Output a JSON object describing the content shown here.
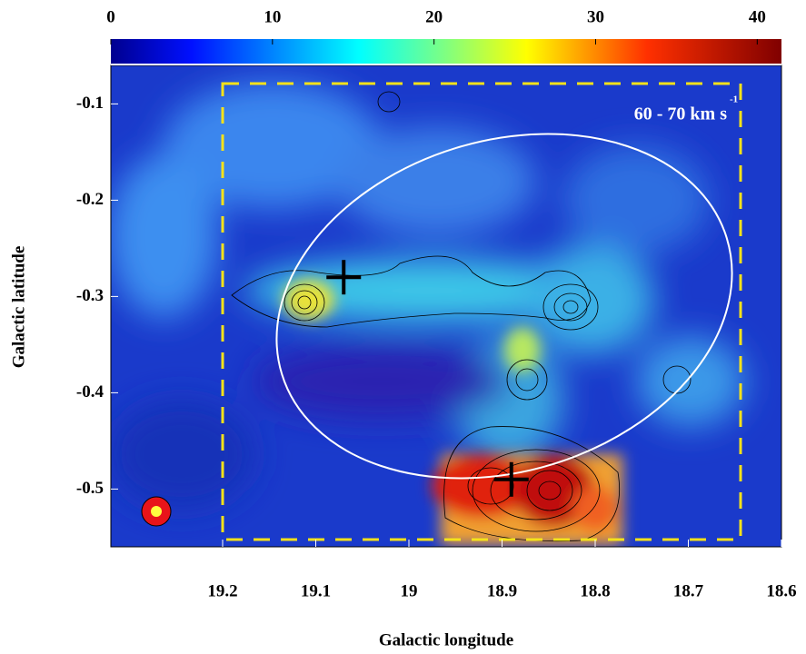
{
  "chart_data": {
    "type": "map",
    "xlabel": "Galactic longitude",
    "ylabel": "Galactic latitude",
    "annotation": "60 - 70 km s",
    "annotation_superscript": "-1",
    "xlim": [
      19.32,
      18.6
    ],
    "xticks": [
      19.2,
      19.1,
      19.0,
      18.9,
      18.8,
      18.7,
      18.6
    ],
    "ylim": [
      -0.56,
      -0.06
    ],
    "yticks": [
      -0.1,
      -0.2,
      -0.3,
      -0.4,
      -0.5
    ],
    "colorbar_lim": [
      0,
      41.5
    ],
    "colorbar_ticks": [
      0,
      10,
      20,
      30,
      40
    ],
    "markers": {
      "x": [
        19.07,
        18.89
      ],
      "y": [
        -0.28,
        -0.49
      ],
      "color": "#000000"
    }
  }
}
